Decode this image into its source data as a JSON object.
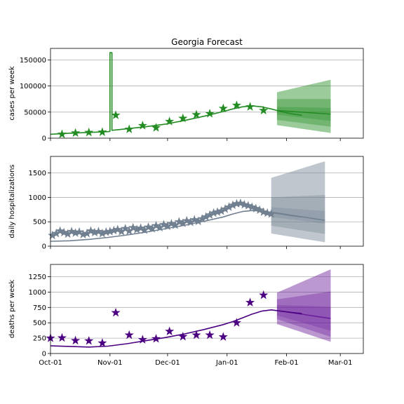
{
  "figure": {
    "title": "Georgia Forecast"
  },
  "chart_data": [
    {
      "type": "line",
      "ylabel": "cases per week",
      "ylim": [
        0,
        172000
      ],
      "yticks": [
        0,
        50000,
        100000,
        150000
      ],
      "ytick_labels": [
        "0",
        "50000",
        "100000",
        "150000"
      ],
      "grid": "horizontal",
      "color": "#228b22",
      "band_color": "#228b22",
      "xlim_days": [
        0,
        163
      ],
      "xticks": [
        0,
        31,
        61,
        92,
        123,
        151
      ],
      "xtick_labels": [
        "Oct-01",
        "Nov-01",
        "Dec-01",
        "Jan-01",
        "Feb-01",
        "Mar-01"
      ],
      "show_xtick_labels": false,
      "model_line": [
        [
          0,
          7500
        ],
        [
          10,
          9500
        ],
        [
          20,
          11000
        ],
        [
          30,
          12500
        ],
        [
          31,
          13000
        ],
        [
          31,
          164000
        ],
        [
          32,
          164000
        ],
        [
          32,
          15000
        ],
        [
          40,
          18000
        ],
        [
          50,
          22000
        ],
        [
          60,
          27000
        ],
        [
          70,
          34000
        ],
        [
          80,
          42000
        ],
        [
          90,
          51000
        ],
        [
          95,
          56000
        ],
        [
          100,
          60000
        ],
        [
          105,
          62000
        ],
        [
          110,
          60000
        ],
        [
          115,
          56000
        ],
        [
          120,
          51000
        ],
        [
          125,
          47000
        ],
        [
          131,
          44000
        ]
      ],
      "observed": [
        [
          6,
          7500
        ],
        [
          13,
          10000
        ],
        [
          20,
          11000
        ],
        [
          27,
          11500
        ],
        [
          34,
          44000
        ],
        [
          41,
          17000
        ],
        [
          48,
          24000
        ],
        [
          55,
          20000
        ],
        [
          62,
          32000
        ],
        [
          69,
          38000
        ],
        [
          76,
          45000
        ],
        [
          83,
          47000
        ],
        [
          90,
          57000
        ],
        [
          97,
          63000
        ],
        [
          104,
          60000
        ],
        [
          111,
          53000
        ]
      ],
      "forecast_x": [
        118,
        146
      ],
      "forecast_median": [
        53000,
        46000
      ],
      "bands": [
        {
          "lower": [
            45000,
            33000
          ],
          "upper": [
            60000,
            58000
          ]
        },
        {
          "lower": [
            35000,
            22000
          ],
          "upper": [
            75000,
            75000
          ]
        },
        {
          "lower": [
            25000,
            10000
          ],
          "upper": [
            88000,
            112000
          ]
        }
      ]
    },
    {
      "type": "line",
      "ylabel": "daily hospitalizations",
      "ylim": [
        0,
        1840
      ],
      "yticks": [
        0,
        500,
        1000,
        1500
      ],
      "ytick_labels": [
        "0",
        "500",
        "1000",
        "1500"
      ],
      "grid": "horizontal",
      "color": "#708090",
      "band_color": "#708090",
      "xlim_days": [
        0,
        163
      ],
      "xticks": [
        0,
        31,
        61,
        92,
        123,
        151
      ],
      "xtick_labels": [
        "Oct-01",
        "Nov-01",
        "Dec-01",
        "Jan-01",
        "Feb-01",
        "Mar-01"
      ],
      "show_xtick_labels": false,
      "model_line": [
        [
          0,
          100
        ],
        [
          10,
          110
        ],
        [
          20,
          140
        ],
        [
          30,
          180
        ],
        [
          40,
          230
        ],
        [
          50,
          290
        ],
        [
          60,
          360
        ],
        [
          70,
          430
        ],
        [
          80,
          510
        ],
        [
          90,
          600
        ],
        [
          95,
          660
        ],
        [
          100,
          710
        ],
        [
          105,
          730
        ],
        [
          110,
          720
        ],
        [
          115,
          690
        ],
        [
          120,
          660
        ],
        [
          125,
          630
        ],
        [
          131,
          600
        ]
      ],
      "observed": [
        [
          1,
          220
        ],
        [
          3,
          260
        ],
        [
          5,
          310
        ],
        [
          7,
          280
        ],
        [
          9,
          250
        ],
        [
          11,
          300
        ],
        [
          13,
          270
        ],
        [
          15,
          290
        ],
        [
          17,
          240
        ],
        [
          19,
          260
        ],
        [
          21,
          310
        ],
        [
          23,
          280
        ],
        [
          25,
          300
        ],
        [
          27,
          260
        ],
        [
          29,
          290
        ],
        [
          31,
          300
        ],
        [
          33,
          320
        ],
        [
          35,
          340
        ],
        [
          37,
          300
        ],
        [
          39,
          360
        ],
        [
          41,
          310
        ],
        [
          43,
          380
        ],
        [
          45,
          340
        ],
        [
          47,
          370
        ],
        [
          49,
          330
        ],
        [
          51,
          390
        ],
        [
          53,
          360
        ],
        [
          55,
          420
        ],
        [
          57,
          380
        ],
        [
          59,
          440
        ],
        [
          61,
          410
        ],
        [
          63,
          460
        ],
        [
          65,
          430
        ],
        [
          67,
          500
        ],
        [
          69,
          470
        ],
        [
          71,
          520
        ],
        [
          73,
          490
        ],
        [
          75,
          540
        ],
        [
          77,
          510
        ],
        [
          79,
          560
        ],
        [
          81,
          600
        ],
        [
          83,
          640
        ],
        [
          85,
          680
        ],
        [
          87,
          700
        ],
        [
          89,
          720
        ],
        [
          91,
          760
        ],
        [
          93,
          800
        ],
        [
          95,
          840
        ],
        [
          97,
          870
        ],
        [
          99,
          880
        ],
        [
          101,
          850
        ],
        [
          103,
          830
        ],
        [
          105,
          800
        ],
        [
          107,
          770
        ],
        [
          109,
          740
        ],
        [
          111,
          700
        ],
        [
          113,
          680
        ],
        [
          115,
          660
        ]
      ],
      "forecast_x": [
        115,
        143
      ],
      "forecast_median": [
        700,
        530
      ],
      "bands": [
        {
          "lower": [
            600,
            460
          ],
          "upper": [
            800,
            720
          ]
        },
        {
          "lower": [
            420,
            250
          ],
          "upper": [
            1000,
            1050
          ]
        },
        {
          "lower": [
            260,
            80
          ],
          "upper": [
            1400,
            1740
          ]
        }
      ]
    },
    {
      "type": "line",
      "ylabel": "deaths per week",
      "ylim": [
        0,
        1450
      ],
      "yticks": [
        0,
        250,
        500,
        750,
        1000,
        1250
      ],
      "ytick_labels": [
        "0",
        "250",
        "500",
        "750",
        "1000",
        "1250"
      ],
      "grid": "horizontal",
      "color": "#4b0082",
      "band_color": "#6a1b9a",
      "xlim_days": [
        0,
        163
      ],
      "xticks": [
        0,
        31,
        61,
        92,
        123,
        151
      ],
      "xtick_labels": [
        "Oct-01",
        "Nov-01",
        "Dec-01",
        "Jan-01",
        "Feb-01",
        "Mar-01"
      ],
      "show_xtick_labels": true,
      "model_line": [
        [
          0,
          125
        ],
        [
          10,
          115
        ],
        [
          20,
          105
        ],
        [
          30,
          120
        ],
        [
          40,
          160
        ],
        [
          50,
          210
        ],
        [
          60,
          260
        ],
        [
          70,
          320
        ],
        [
          80,
          390
        ],
        [
          90,
          470
        ],
        [
          95,
          520
        ],
        [
          100,
          580
        ],
        [
          105,
          640
        ],
        [
          110,
          690
        ],
        [
          115,
          710
        ],
        [
          120,
          690
        ],
        [
          125,
          670
        ],
        [
          131,
          650
        ]
      ],
      "observed": [
        [
          0,
          250
        ],
        [
          6,
          255
        ],
        [
          13,
          210
        ],
        [
          20,
          205
        ],
        [
          27,
          170
        ],
        [
          34,
          665
        ],
        [
          41,
          300
        ],
        [
          48,
          225
        ],
        [
          55,
          240
        ],
        [
          62,
          360
        ],
        [
          69,
          275
        ],
        [
          76,
          300
        ],
        [
          83,
          300
        ],
        [
          90,
          270
        ],
        [
          97,
          500
        ],
        [
          104,
          830
        ],
        [
          111,
          950
        ]
      ],
      "forecast_x": [
        118,
        146
      ],
      "forecast_median": [
        700,
        570
      ],
      "bands": [
        {
          "lower": [
            620,
            370
          ],
          "upper": [
            790,
            760
          ]
        },
        {
          "lower": [
            560,
            270
          ],
          "upper": [
            880,
            1010
          ]
        },
        {
          "lower": [
            480,
            190
          ],
          "upper": [
            990,
            1370
          ]
        }
      ]
    }
  ]
}
